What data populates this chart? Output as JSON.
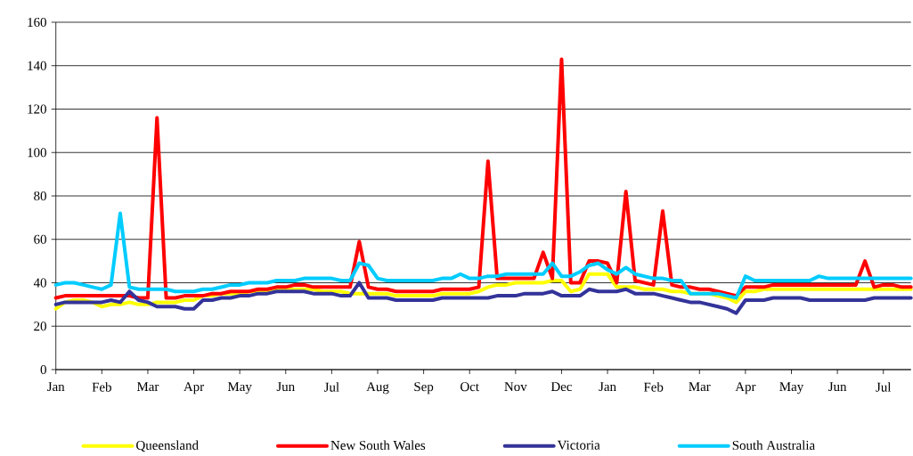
{
  "chart_data": {
    "type": "line",
    "ylim": [
      0,
      160
    ],
    "categories": [
      "Jan",
      null,
      null,
      null,
      null,
      "Feb",
      null,
      null,
      null,
      null,
      "Mar",
      null,
      null,
      null,
      null,
      "Apr",
      null,
      null,
      null,
      null,
      "May",
      null,
      null,
      null,
      null,
      "Jun",
      null,
      null,
      null,
      null,
      "Jul",
      null,
      null,
      null,
      null,
      "Aug",
      null,
      null,
      null,
      null,
      "Sep",
      null,
      null,
      null,
      null,
      "Oct",
      null,
      null,
      null,
      null,
      "Nov",
      null,
      null,
      null,
      null,
      "Dec",
      null,
      null,
      null,
      null,
      "Jan",
      null,
      null,
      null,
      null,
      "Feb",
      null,
      null,
      null,
      null,
      "Mar",
      null,
      null,
      null,
      null,
      "Apr",
      null,
      null,
      null,
      null,
      "May",
      null,
      null,
      null,
      null,
      "Jun",
      null,
      null,
      null,
      null,
      "Jul",
      null,
      null,
      null
    ],
    "yticks": [
      0,
      20,
      40,
      60,
      80,
      100,
      120,
      140,
      160
    ],
    "grid": "y",
    "legend": "bottom",
    "series": [
      {
        "name": "Queensland",
        "color": "#ffff00",
        "values": [
          28,
          31,
          32,
          32,
          31,
          29,
          30,
          30,
          31,
          30,
          30,
          31,
          31,
          31,
          32,
          32,
          34,
          34,
          35,
          35,
          35,
          36,
          36,
          36,
          37,
          37,
          37,
          37,
          37,
          36,
          36,
          36,
          35,
          35,
          35,
          35,
          35,
          34,
          34,
          34,
          34,
          34,
          35,
          35,
          35,
          35,
          36,
          38,
          39,
          39,
          40,
          40,
          40,
          40,
          41,
          41,
          36,
          37,
          44,
          44,
          44,
          38,
          38,
          38,
          37,
          37,
          37,
          36,
          36,
          35,
          null,
          35,
          34,
          33,
          31,
          36,
          36,
          37,
          37,
          37,
          37,
          37,
          37,
          37,
          37,
          37,
          37,
          37,
          37,
          37,
          37,
          37,
          37,
          37
        ]
      },
      {
        "name": "New South Wales",
        "color": "#ff0000",
        "values": [
          33,
          34,
          34,
          34,
          34,
          34,
          34,
          34,
          34,
          33,
          33,
          116,
          33,
          33,
          34,
          34,
          34,
          35,
          35,
          36,
          36,
          36,
          37,
          37,
          38,
          38,
          39,
          39,
          38,
          38,
          38,
          38,
          38,
          59,
          38,
          37,
          37,
          36,
          36,
          36,
          36,
          36,
          37,
          37,
          37,
          37,
          38,
          96,
          42,
          42,
          42,
          42,
          42,
          54,
          42,
          143,
          40,
          40,
          50,
          50,
          49,
          40,
          82,
          41,
          40,
          39,
          73,
          39,
          38,
          38,
          37,
          37,
          36,
          35,
          34,
          38,
          38,
          38,
          39,
          39,
          39,
          39,
          39,
          39,
          39,
          39,
          39,
          39,
          50,
          38,
          39,
          39,
          38,
          38
        ]
      },
      {
        "name": "Victoria",
        "color": "#333399",
        "values": [
          30,
          31,
          31,
          31,
          31,
          31,
          32,
          31,
          36,
          32,
          31,
          29,
          29,
          29,
          28,
          28,
          32,
          32,
          33,
          33,
          34,
          34,
          35,
          35,
          36,
          36,
          36,
          36,
          35,
          35,
          35,
          34,
          34,
          40,
          33,
          33,
          33,
          32,
          32,
          32,
          32,
          32,
          33,
          33,
          33,
          33,
          33,
          33,
          34,
          34,
          34,
          35,
          35,
          35,
          36,
          34,
          34,
          34,
          37,
          36,
          36,
          36,
          37,
          35,
          35,
          35,
          34,
          33,
          32,
          31,
          31,
          30,
          29,
          28,
          26,
          32,
          32,
          32,
          33,
          33,
          33,
          33,
          32,
          32,
          32,
          32,
          32,
          32,
          32,
          33,
          33,
          33,
          33,
          33
        ]
      },
      {
        "name": "South Australia",
        "color": "#00ccff",
        "values": [
          39,
          40,
          40,
          39,
          38,
          37,
          39,
          72,
          38,
          37,
          37,
          37,
          37,
          36,
          36,
          36,
          37,
          37,
          38,
          39,
          39,
          40,
          40,
          40,
          41,
          41,
          41,
          42,
          42,
          42,
          42,
          41,
          41,
          49,
          48,
          42,
          41,
          41,
          41,
          41,
          41,
          41,
          42,
          42,
          44,
          42,
          42,
          43,
          43,
          44,
          44,
          44,
          44,
          44,
          49,
          43,
          43,
          45,
          48,
          49,
          46,
          44,
          47,
          44,
          43,
          42,
          42,
          41,
          41,
          35,
          35,
          35,
          35,
          34,
          33,
          43,
          41,
          41,
          41,
          41,
          41,
          41,
          41,
          43,
          42,
          42,
          42,
          42,
          42,
          42,
          42,
          42,
          42,
          42
        ]
      }
    ]
  }
}
